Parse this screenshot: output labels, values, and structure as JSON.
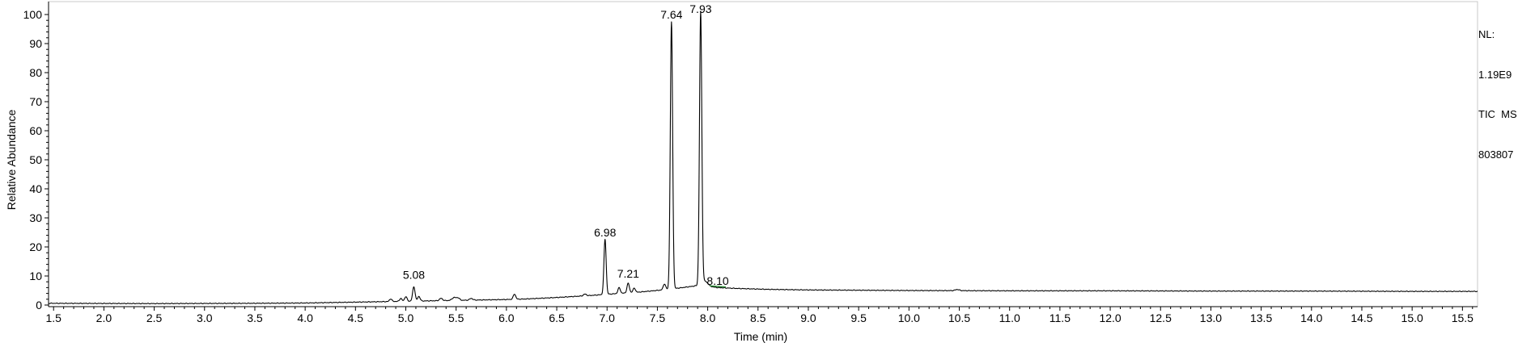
{
  "info": {
    "nl_label": "NL:",
    "nl_value": "1.19E9",
    "trace": "TIC  MS",
    "file_id": "803807"
  },
  "chart_data": {
    "type": "line",
    "xlabel": "Time (min)",
    "ylabel": "Relative Abundance",
    "xlim": [
      1.45,
      15.65
    ],
    "ylim": [
      0,
      100
    ],
    "xticks": [
      "1.5",
      "2.0",
      "2.5",
      "3.0",
      "3.5",
      "4.0",
      "4.5",
      "5.0",
      "5.5",
      "6.0",
      "6.5",
      "7.0",
      "7.5",
      "8.0",
      "8.5",
      "9.0",
      "9.5",
      "10.0",
      "10.5",
      "11.0",
      "11.5",
      "12.0",
      "12.5",
      "13.0",
      "13.5",
      "14.0",
      "14.5",
      "15.0",
      "15.5"
    ],
    "yticks": [
      "0",
      "10",
      "20",
      "30",
      "40",
      "50",
      "60",
      "70",
      "80",
      "90",
      "100"
    ],
    "colors": {
      "trace": "#000000",
      "axis": "#000000",
      "baseline_mark": "#2e8b3a"
    },
    "series": [
      {
        "baseline": [
          [
            1.45,
            0.6
          ],
          [
            2.5,
            0.5
          ],
          [
            3.5,
            0.6
          ],
          [
            4.0,
            0.7
          ],
          [
            4.5,
            1.0
          ],
          [
            5.0,
            1.3
          ],
          [
            5.5,
            1.6
          ],
          [
            6.0,
            1.9
          ],
          [
            6.2,
            2.1
          ],
          [
            6.5,
            2.6
          ],
          [
            6.8,
            3.2
          ],
          [
            7.0,
            3.7
          ],
          [
            7.3,
            4.4
          ],
          [
            7.55,
            5.2
          ],
          [
            7.75,
            6.0
          ],
          [
            7.88,
            6.6
          ],
          [
            8.0,
            6.4
          ],
          [
            8.1,
            6.0
          ],
          [
            8.3,
            5.7
          ],
          [
            8.6,
            5.4
          ],
          [
            9.0,
            5.2
          ],
          [
            10.0,
            5.0
          ],
          [
            11.0,
            4.9
          ],
          [
            12.0,
            4.9
          ],
          [
            13.0,
            4.8
          ],
          [
            14.0,
            4.8
          ],
          [
            15.0,
            4.7
          ],
          [
            15.65,
            4.7
          ]
        ],
        "peaks": [
          [
            4.85,
            0.9,
            0.012
          ],
          [
            4.95,
            1.0,
            0.012
          ],
          [
            5.0,
            1.6,
            0.012
          ],
          [
            5.08,
            5.0,
            0.012
          ],
          [
            5.13,
            1.6,
            0.012
          ],
          [
            5.35,
            0.8,
            0.015
          ],
          [
            5.48,
            1.0,
            0.02
          ],
          [
            5.52,
            0.8,
            0.015
          ],
          [
            5.65,
            0.6,
            0.015
          ],
          [
            6.08,
            1.8,
            0.012
          ],
          [
            6.78,
            0.6,
            0.015
          ],
          [
            6.98,
            19.0,
            0.011
          ],
          [
            7.12,
            2.0,
            0.012
          ],
          [
            7.21,
            3.3,
            0.012
          ],
          [
            7.27,
            1.5,
            0.012
          ],
          [
            7.57,
            2.0,
            0.012
          ],
          [
            7.64,
            91.8,
            0.0115
          ],
          [
            7.93,
            93.8,
            0.0115
          ],
          [
            7.97,
            1.8,
            0.03
          ],
          [
            10.48,
            0.4,
            0.02
          ]
        ]
      }
    ],
    "annotations": [
      {
        "x": 5.08,
        "label": "5.08",
        "y": 9.0
      },
      {
        "x": 6.98,
        "label": "6.98",
        "y": 23.6
      },
      {
        "x": 7.21,
        "label": "7.21",
        "y": 9.4
      },
      {
        "x": 7.64,
        "label": "7.64",
        "y": 98.6
      },
      {
        "x": 7.93,
        "label": "7.93",
        "y": 100.6
      },
      {
        "x": 8.1,
        "label": "8.10",
        "y": 7.0
      }
    ]
  }
}
